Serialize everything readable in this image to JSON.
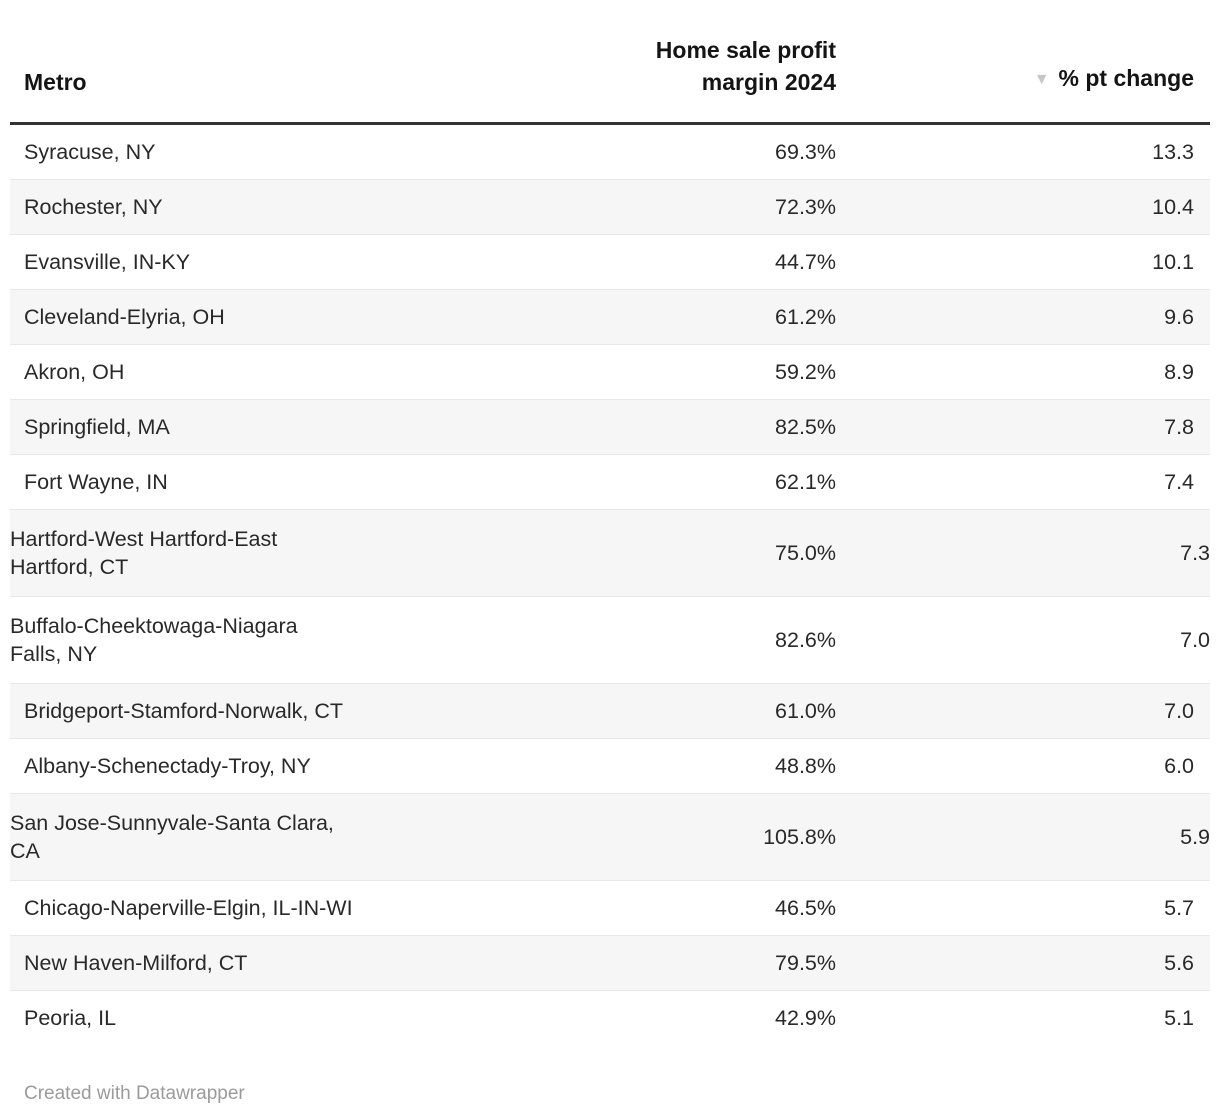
{
  "table": {
    "columns": [
      {
        "label": "Metro",
        "align": "left"
      },
      {
        "label": "Home sale profit\nmargin 2024",
        "align": "right"
      },
      {
        "label": "% pt change",
        "align": "right",
        "sort_indicator": "descending",
        "sort_icon": "▼"
      }
    ],
    "rows": [
      {
        "metro": "Syracuse, NY",
        "margin": "69.3%",
        "change": "13.3"
      },
      {
        "metro": "Rochester, NY",
        "margin": "72.3%",
        "change": "10.4"
      },
      {
        "metro": "Evansville, IN-KY",
        "margin": "44.7%",
        "change": "10.1"
      },
      {
        "metro": "Cleveland-Elyria, OH",
        "margin": "61.2%",
        "change": "9.6"
      },
      {
        "metro": "Akron, OH",
        "margin": "59.2%",
        "change": "8.9"
      },
      {
        "metro": "Springfield, MA",
        "margin": "82.5%",
        "change": "7.8"
      },
      {
        "metro": "Fort Wayne, IN",
        "margin": "62.1%",
        "change": "7.4"
      },
      {
        "metro": "Hartford-West Hartford-East\nHartford, CT",
        "margin": "75.0%",
        "change": "7.3"
      },
      {
        "metro": "Buffalo-Cheektowaga-Niagara\nFalls, NY",
        "margin": "82.6%",
        "change": "7.0"
      },
      {
        "metro": "Bridgeport-Stamford-Norwalk, CT",
        "margin": "61.0%",
        "change": "7.0"
      },
      {
        "metro": "Albany-Schenectady-Troy, NY",
        "margin": "48.8%",
        "change": "6.0"
      },
      {
        "metro": "San Jose-Sunnyvale-Santa Clara,\nCA",
        "margin": "105.8%",
        "change": "5.9"
      },
      {
        "metro": "Chicago-Naperville-Elgin, IL-IN-WI",
        "margin": "46.5%",
        "change": "5.7"
      },
      {
        "metro": "New Haven-Milford, CT",
        "margin": "79.5%",
        "change": "5.6"
      },
      {
        "metro": "Peoria, IL",
        "margin": "42.9%",
        "change": "5.1"
      }
    ]
  },
  "footer": {
    "credit": "Created with Datawrapper"
  },
  "colors": {
    "header_text": "#141414",
    "header_rule": "#333333",
    "body_text": "#292929",
    "row_stripe": "#f6f6f6",
    "row_divider": "#e7e7e7",
    "sort_arrow": "#c6c6c6",
    "footer_text": "#9b9b9b",
    "background": "#ffffff"
  },
  "chart_data": {
    "type": "table",
    "columns": [
      "Metro",
      "Home sale profit margin 2024",
      "% pt change"
    ],
    "sort": {
      "column": "% pt change",
      "direction": "desc"
    },
    "rows": [
      [
        "Syracuse, NY",
        69.3,
        13.3
      ],
      [
        "Rochester, NY",
        72.3,
        10.4
      ],
      [
        "Evansville, IN-KY",
        44.7,
        10.1
      ],
      [
        "Cleveland-Elyria, OH",
        61.2,
        9.6
      ],
      [
        "Akron, OH",
        59.2,
        8.9
      ],
      [
        "Springfield, MA",
        82.5,
        7.8
      ],
      [
        "Fort Wayne, IN",
        62.1,
        7.4
      ],
      [
        "Hartford-West Hartford-East Hartford, CT",
        75.0,
        7.3
      ],
      [
        "Buffalo-Cheektowaga-Niagara Falls, NY",
        82.6,
        7.0
      ],
      [
        "Bridgeport-Stamford-Norwalk, CT",
        61.0,
        7.0
      ],
      [
        "Albany-Schenectady-Troy, NY",
        48.8,
        6.0
      ],
      [
        "San Jose-Sunnyvale-Santa Clara, CA",
        105.8,
        5.9
      ],
      [
        "Chicago-Naperville-Elgin, IL-IN-WI",
        46.5,
        5.7
      ],
      [
        "New Haven-Milford, CT",
        79.5,
        5.6
      ],
      [
        "Peoria, IL",
        42.9,
        5.1
      ]
    ],
    "credit": "Created with Datawrapper"
  }
}
